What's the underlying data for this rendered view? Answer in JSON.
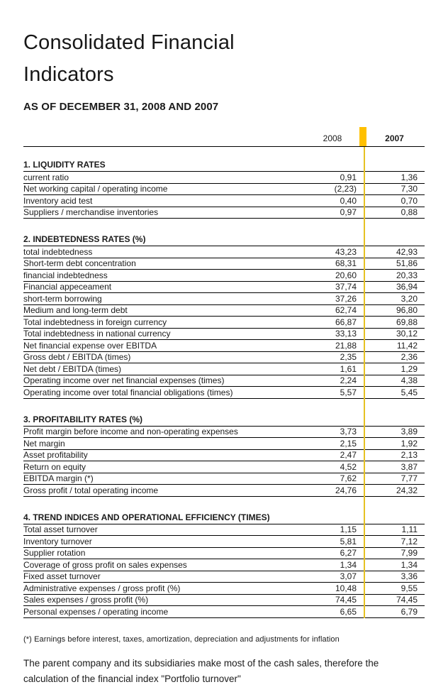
{
  "page": {
    "title_line1": "Consolidated Financial",
    "title_line2": "Indicators",
    "subtitle": "AS OF DECEMBER 31, 2008 AND 2007"
  },
  "table": {
    "columns": [
      "2008",
      "2007"
    ],
    "sections": [
      {
        "title": "1. LIQUIDITY RATES",
        "rows": [
          {
            "label": "current ratio",
            "y2008": "0,91",
            "y2007": "1,36"
          },
          {
            "label": "Net working capital / operating income",
            "y2008": "(2,23)",
            "y2007": "7,30"
          },
          {
            "label": "Inventory acid test",
            "y2008": "0,40",
            "y2007": "0,70"
          },
          {
            "label": "Suppliers / merchandise inventories",
            "y2008": "0,97",
            "y2007": "0,88"
          }
        ]
      },
      {
        "title": "2. INDEBTEDNESS RATES (%)",
        "rows": [
          {
            "label": "total indebtedness",
            "y2008": "43,23",
            "y2007": "42,93"
          },
          {
            "label": "Short-term debt concentration",
            "y2008": "68,31",
            "y2007": "51,86"
          },
          {
            "label": "financial indebtedness",
            "y2008": "20,60",
            "y2007": "20,33"
          },
          {
            "label": "Financial appeceament",
            "y2008": "37,74",
            "y2007": "36,94"
          },
          {
            "label": "short-term borrowing",
            "y2008": "37,26",
            "y2007": "3,20"
          },
          {
            "label": "Medium and long-term debt",
            "y2008": "62,74",
            "y2007": "96,80"
          },
          {
            "label": "Total indebtedness in foreign currency",
            "y2008": "66,87",
            "y2007": "69,88"
          },
          {
            "label": "Total indebtedness in national currency",
            "y2008": "33,13",
            "y2007": "30,12"
          },
          {
            "label": "Net financial expense over EBITDA",
            "y2008": "21,88",
            "y2007": "11,42"
          },
          {
            "label": "Gross debt / EBITDA (times)",
            "y2008": "2,35",
            "y2007": "2,36"
          },
          {
            "label": "Net debt / EBITDA (times)",
            "y2008": "1,61",
            "y2007": "1,29"
          },
          {
            "label": "Operating income over net financial expenses (times)",
            "y2008": "2,24",
            "y2007": "4,38"
          },
          {
            "label": "Operating income over total financial obligations (times)",
            "y2008": "5,57",
            "y2007": "5,45"
          }
        ]
      },
      {
        "title": "3. PROFITABILITY RATES (%)",
        "rows": [
          {
            "label": "Profit margin before income and non-operating expenses",
            "y2008": "3,73",
            "y2007": "3,89"
          },
          {
            "label": "Net margin",
            "y2008": "2,15",
            "y2007": "1,92"
          },
          {
            "label": "Asset profitability",
            "y2008": "2,47",
            "y2007": "2,13"
          },
          {
            "label": "Return on equity",
            "y2008": "4,52",
            "y2007": "3,87"
          },
          {
            "label": "EBITDA margin (*)",
            "y2008": "7,62",
            "y2007": "7,77"
          },
          {
            "label": "Gross profit / total operating income",
            "y2008": "24,76",
            "y2007": "24,32"
          }
        ]
      },
      {
        "title": "4. TREND INDICES AND OPERATIONAL EFFICIENCY (TIMES)",
        "rows": [
          {
            "label": "Total asset turnover",
            "y2008": "1,15",
            "y2007": "1,11"
          },
          {
            "label": "Inventory turnover",
            "y2008": "5,81",
            "y2007": "7,12"
          },
          {
            "label": "Supplier rotation",
            "y2008": "6,27",
            "y2007": "7,99"
          },
          {
            "label": "Coverage of gross profit on sales expenses",
            "y2008": "1,34",
            "y2007": "1,34"
          },
          {
            "label": "Fixed asset turnover",
            "y2008": "3,07",
            "y2007": "3,36"
          },
          {
            "label": "Administrative expenses / gross profit (%)",
            "y2008": "10,48",
            "y2007": "9,55"
          },
          {
            "label": "Sales expenses / gross profit (%)",
            "y2008": "74,45",
            "y2007": "74,45"
          },
          {
            "label": "Personal expenses / operating income",
            "y2008": "6,65",
            "y2007": "6,79"
          }
        ]
      }
    ]
  },
  "footnotes": {
    "asterisk": "(*) Earnings before interest, taxes, amortization, depreciation and adjustments for inflation",
    "paragraph": "The parent company and its subsidiaries make most of the cash sales, therefore the calculation of the financial index \"Portfolio turnover\""
  },
  "colors": {
    "accent_bar": "#FFC000",
    "divider_line": "#E6C222"
  }
}
